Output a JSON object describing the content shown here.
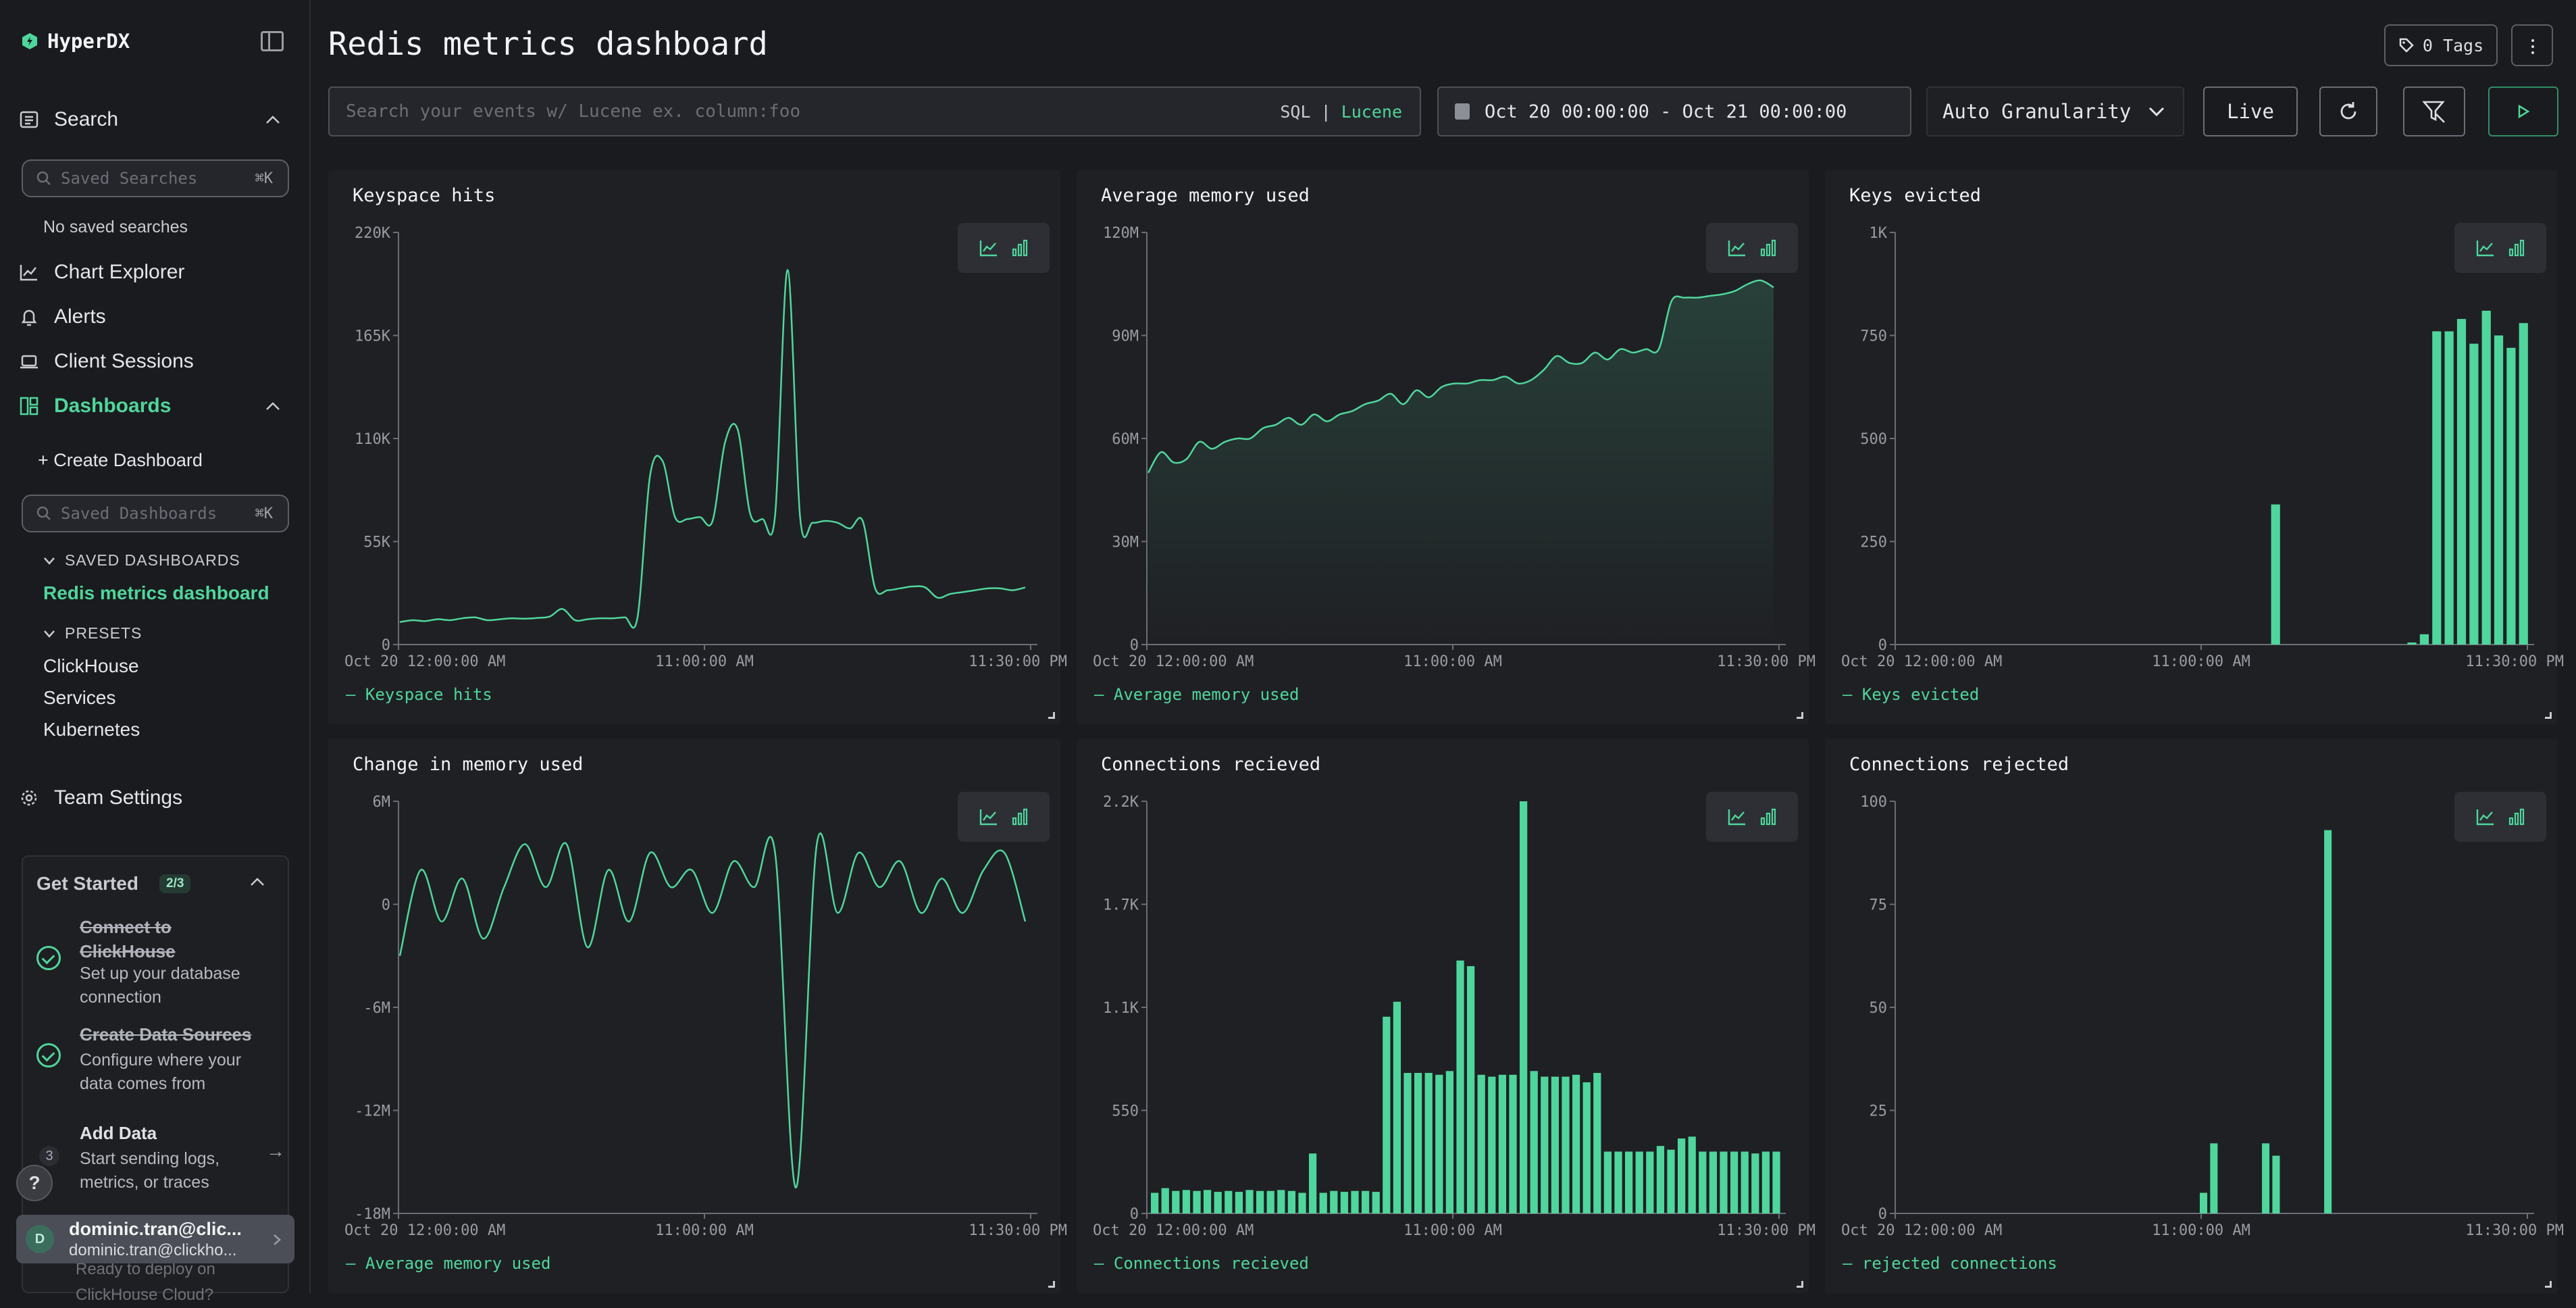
{
  "app": {
    "name": "HyperDX"
  },
  "sidebar": {
    "search_label": "Search",
    "saved_searches_placeholder": "Saved Searches",
    "saved_searches_shortcut": "⌘K",
    "no_saved_searches": "No saved searches",
    "nav": {
      "chart_explorer": "Chart Explorer",
      "alerts": "Alerts",
      "client_sessions": "Client Sessions",
      "dashboards": "Dashboards",
      "team_settings": "Team Settings"
    },
    "create_dashboard": "+ Create Dashboard",
    "saved_dashboards_placeholder": "Saved Dashboards",
    "saved_dashboards_shortcut": "⌘K",
    "saved_dashboards_label": "SAVED DASHBOARDS",
    "saved_dashboards": [
      "Redis metrics dashboard"
    ],
    "presets_label": "PRESETS",
    "presets": [
      "ClickHouse",
      "Services",
      "Kubernetes"
    ]
  },
  "get_started": {
    "title": "Get Started",
    "badge": "2/3",
    "steps": [
      {
        "title": "Connect to ClickHouse",
        "desc": "Set up your database connection",
        "done": true
      },
      {
        "title": "Create Data Sources",
        "desc": "Configure where your data comes from",
        "done": true
      },
      {
        "title": "Add Data",
        "desc": "Start sending logs, metrics, or traces",
        "done": false,
        "number": "3"
      }
    ],
    "footer_faded": "Ready to deploy on ClickHouse Cloud?"
  },
  "help_label": "?",
  "user": {
    "initial": "D",
    "name": "dominic.tran@clic...",
    "email": "dominic.tran@clickho..."
  },
  "header": {
    "title": "Redis metrics dashboard",
    "tags": "0 Tags",
    "query_placeholder": "Search your events w/ Lucene ex. column:foo",
    "lang_sql": "SQL",
    "lang_sep": "|",
    "lang_lucene": "Lucene",
    "date_range": "Oct 20 00:00:00 - Oct 21 00:00:00",
    "granularity": "Auto Granularity",
    "live": "Live"
  },
  "colors": {
    "accent": "#4fd69c",
    "background": "#1a1b1e",
    "panel": "#1f2024"
  },
  "panels": [
    {
      "title": "Keyspace hits",
      "legend": "— Keyspace hits"
    },
    {
      "title": "Average memory used",
      "legend": "— Average memory used"
    },
    {
      "title": "Keys evicted",
      "legend": "— Keys evicted"
    },
    {
      "title": "Change in memory used",
      "legend": "— Average memory used"
    },
    {
      "title": "Connections recieved",
      "legend": "— Connections recieved"
    },
    {
      "title": "Connections rejected",
      "legend": "— rejected connections"
    }
  ],
  "chart_data": [
    {
      "type": "line",
      "title": "Keyspace hits",
      "yticks": [
        "220K",
        "165K",
        "110K",
        "55K",
        "0"
      ],
      "ylim": [
        0,
        220000
      ],
      "xticks": [
        "Oct 20 12:00:00 AM",
        "11:00:00 AM",
        "11:30:00 PM"
      ],
      "series": [
        {
          "name": "Keyspace hits",
          "values": [
            12000,
            13000,
            12500,
            13500,
            13000,
            14000,
            14500,
            13000,
            13500,
            14000,
            13800,
            14200,
            15000,
            19000,
            13000,
            13500,
            14000,
            14000,
            14500,
            14500,
            90000,
            98000,
            68000,
            67000,
            68000,
            66000,
            108000,
            115000,
            70000,
            67000,
            69000,
            200000,
            68000,
            65000,
            66000,
            65000,
            62000,
            66000,
            30000,
            29000,
            30000,
            31000,
            30500,
            25000,
            27000,
            28000,
            29000,
            30000,
            30000,
            29000,
            30500
          ]
        }
      ]
    },
    {
      "type": "area",
      "title": "Average memory used",
      "yticks": [
        "120M",
        "90M",
        "60M",
        "30M",
        "0"
      ],
      "ylim": [
        0,
        120000000
      ],
      "xticks": [
        "Oct 20 12:00:00 AM",
        "11:00:00 AM",
        "11:30:00 PM"
      ],
      "series": [
        {
          "name": "Average memory used",
          "values": [
            50000000,
            56000000,
            53000000,
            54000000,
            59000000,
            57000000,
            59000000,
            60000000,
            60000000,
            63000000,
            64000000,
            66000000,
            64000000,
            67000000,
            65000000,
            67000000,
            68000000,
            70000000,
            71000000,
            73000000,
            70000000,
            74000000,
            72000000,
            75000000,
            76000000,
            76000000,
            77000000,
            77000000,
            78000000,
            76000000,
            77000000,
            80000000,
            84000000,
            82000000,
            82000000,
            85000000,
            83000000,
            86000000,
            85000000,
            86000000,
            86000000,
            100000000,
            101000000,
            101000000,
            101500000,
            102000000,
            103000000,
            105000000,
            106000000,
            104000000
          ]
        }
      ]
    },
    {
      "type": "bar",
      "title": "Keys evicted",
      "yticks": [
        "1K",
        "750",
        "500",
        "250",
        "0"
      ],
      "ylim": [
        0,
        1000
      ],
      "xticks": [
        "Oct 20 12:00:00 AM",
        "11:00:00 AM",
        "11:30:00 PM"
      ],
      "series": [
        {
          "name": "Keys evicted",
          "values": [
            0,
            0,
            0,
            0,
            0,
            0,
            0,
            0,
            0,
            0,
            0,
            0,
            0,
            0,
            0,
            0,
            0,
            0,
            0,
            0,
            0,
            0,
            0,
            0,
            0,
            0,
            0,
            0,
            0,
            0,
            340,
            0,
            0,
            0,
            0,
            0,
            0,
            0,
            0,
            0,
            0,
            5,
            25,
            760,
            760,
            790,
            730,
            810,
            750,
            720,
            780
          ]
        }
      ]
    },
    {
      "type": "line",
      "title": "Change in memory used",
      "yticks": [
        "6M",
        "0",
        "-6M",
        "-12M",
        "-18M"
      ],
      "ylim": [
        -18000000,
        6000000
      ],
      "xticks": [
        "Oct 20 12:00:00 AM",
        "11:00:00 AM",
        "11:30:00 PM"
      ],
      "series": [
        {
          "name": "Average memory used",
          "values": [
            -3000000,
            2000000,
            -1000000,
            1500000,
            -2000000,
            1000000,
            3500000,
            1000000,
            3500000,
            -2500000,
            2000000,
            -1000000,
            3000000,
            1000000,
            2000000,
            -500000,
            2500000,
            1000000,
            3000000,
            -16500000,
            3500000,
            -500000,
            3000000,
            1000000,
            2500000,
            -500000,
            1500000,
            -500000,
            2000000,
            3000000,
            -1000000
          ]
        }
      ]
    },
    {
      "type": "bar",
      "title": "Connections recieved",
      "yticks": [
        "2.2K",
        "1.7K",
        "1.1K",
        "550",
        "0"
      ],
      "ylim": [
        0,
        2200
      ],
      "xticks": [
        "Oct 20 12:00:00 AM",
        "11:00:00 AM",
        "11:30:00 PM"
      ],
      "series": [
        {
          "name": "Connections recieved",
          "values": [
            110,
            135,
            120,
            125,
            120,
            125,
            115,
            120,
            115,
            125,
            120,
            120,
            125,
            120,
            110,
            320,
            110,
            120,
            115,
            120,
            120,
            115,
            1050,
            1130,
            750,
            750,
            750,
            740,
            760,
            1350,
            1320,
            740,
            730,
            740,
            740,
            2200,
            760,
            730,
            730,
            730,
            740,
            700,
            750,
            330,
            330,
            330,
            330,
            330,
            360,
            340,
            400,
            410,
            330,
            330,
            330,
            330,
            330,
            320,
            330,
            330
          ]
        }
      ]
    },
    {
      "type": "bar",
      "title": "Connections rejected",
      "yticks": [
        "100",
        "75",
        "50",
        "25",
        "0"
      ],
      "ylim": [
        0,
        100
      ],
      "xticks": [
        "Oct 20 12:00:00 AM",
        "11:00:00 AM",
        "11:30:00 PM"
      ],
      "series": [
        {
          "name": "rejected connections",
          "values": [
            0,
            0,
            0,
            0,
            0,
            0,
            0,
            0,
            0,
            0,
            0,
            0,
            0,
            0,
            0,
            0,
            0,
            0,
            0,
            0,
            0,
            0,
            0,
            0,
            0,
            0,
            0,
            0,
            0,
            5,
            17,
            0,
            0,
            0,
            0,
            17,
            14,
            0,
            0,
            0,
            0,
            93,
            0,
            0,
            0,
            0,
            0,
            0,
            0,
            0,
            0,
            0,
            0,
            0,
            0,
            0,
            0,
            0,
            0,
            0,
            0
          ]
        }
      ]
    }
  ]
}
